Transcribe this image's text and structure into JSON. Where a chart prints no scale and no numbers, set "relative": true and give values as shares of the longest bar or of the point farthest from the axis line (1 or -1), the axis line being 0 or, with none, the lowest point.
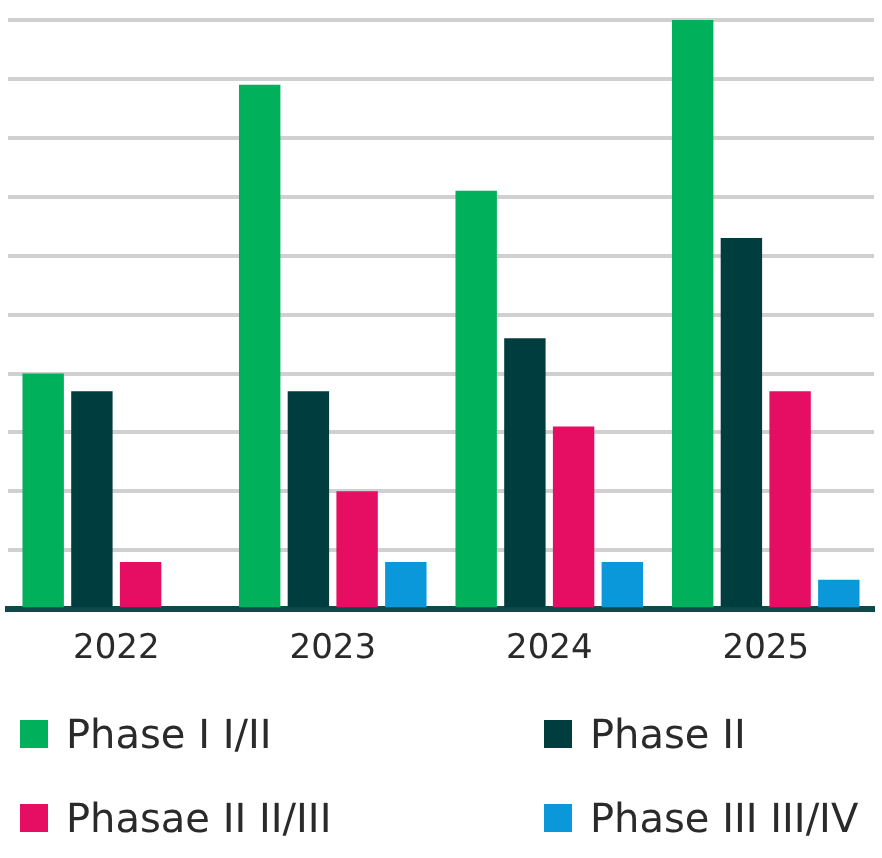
{
  "chart_data": {
    "type": "bar",
    "relative": true,
    "categories": [
      "2022",
      "2023",
      "2024",
      "2025"
    ],
    "series": [
      {
        "name": "Phase I I/II",
        "color": "#00b05a",
        "values": [
          0.4,
          0.89,
          0.71,
          1
        ]
      },
      {
        "name": "Phase II",
        "color": "#003d3f",
        "values": [
          0.37,
          0.37,
          0.46,
          0.63
        ]
      },
      {
        "name": "Phasae II II/III",
        "color": "#e60e62",
        "values": [
          0.08,
          0.2,
          0.31,
          0.37
        ]
      },
      {
        "name": "Phase III III/IV",
        "color": "#0a98da",
        "values": [
          null,
          0.08,
          0.08,
          0.05
        ]
      }
    ],
    "grid": "y",
    "legend": "bottom"
  }
}
